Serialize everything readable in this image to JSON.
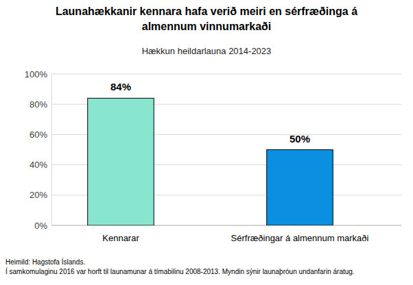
{
  "chart_data": {
    "type": "bar",
    "title": "Launahækkanir kennara hafa verið meiri en sérfræðinga á almennum vinnumarkaði",
    "subtitle": "Hækkun heildarlauna 2014-2023",
    "categories": [
      "Kennarar",
      "Sérfræðingar á almennum markaði"
    ],
    "values": [
      84,
      50
    ],
    "value_labels": [
      "84%",
      "50%"
    ],
    "colors": [
      "#88e5cf",
      "#0b8fe0"
    ],
    "data_labels": true,
    "ylim": [
      0,
      100
    ],
    "yticks": [
      {
        "value": 0,
        "label": "0%"
      },
      {
        "value": 20,
        "label": "20%"
      },
      {
        "value": 40,
        "label": "40%"
      },
      {
        "value": 60,
        "label": "60%"
      },
      {
        "value": 80,
        "label": "80%"
      },
      {
        "value": 100,
        "label": "100%"
      }
    ],
    "grid": true,
    "notes": [
      "Heimild: Hagstofa Íslands.",
      "Í samkomulaginu 2016 var horft til launamunar á tímabilinu 2008-2013. Myndin sýnir launaþróun undanfarin áratug."
    ]
  }
}
